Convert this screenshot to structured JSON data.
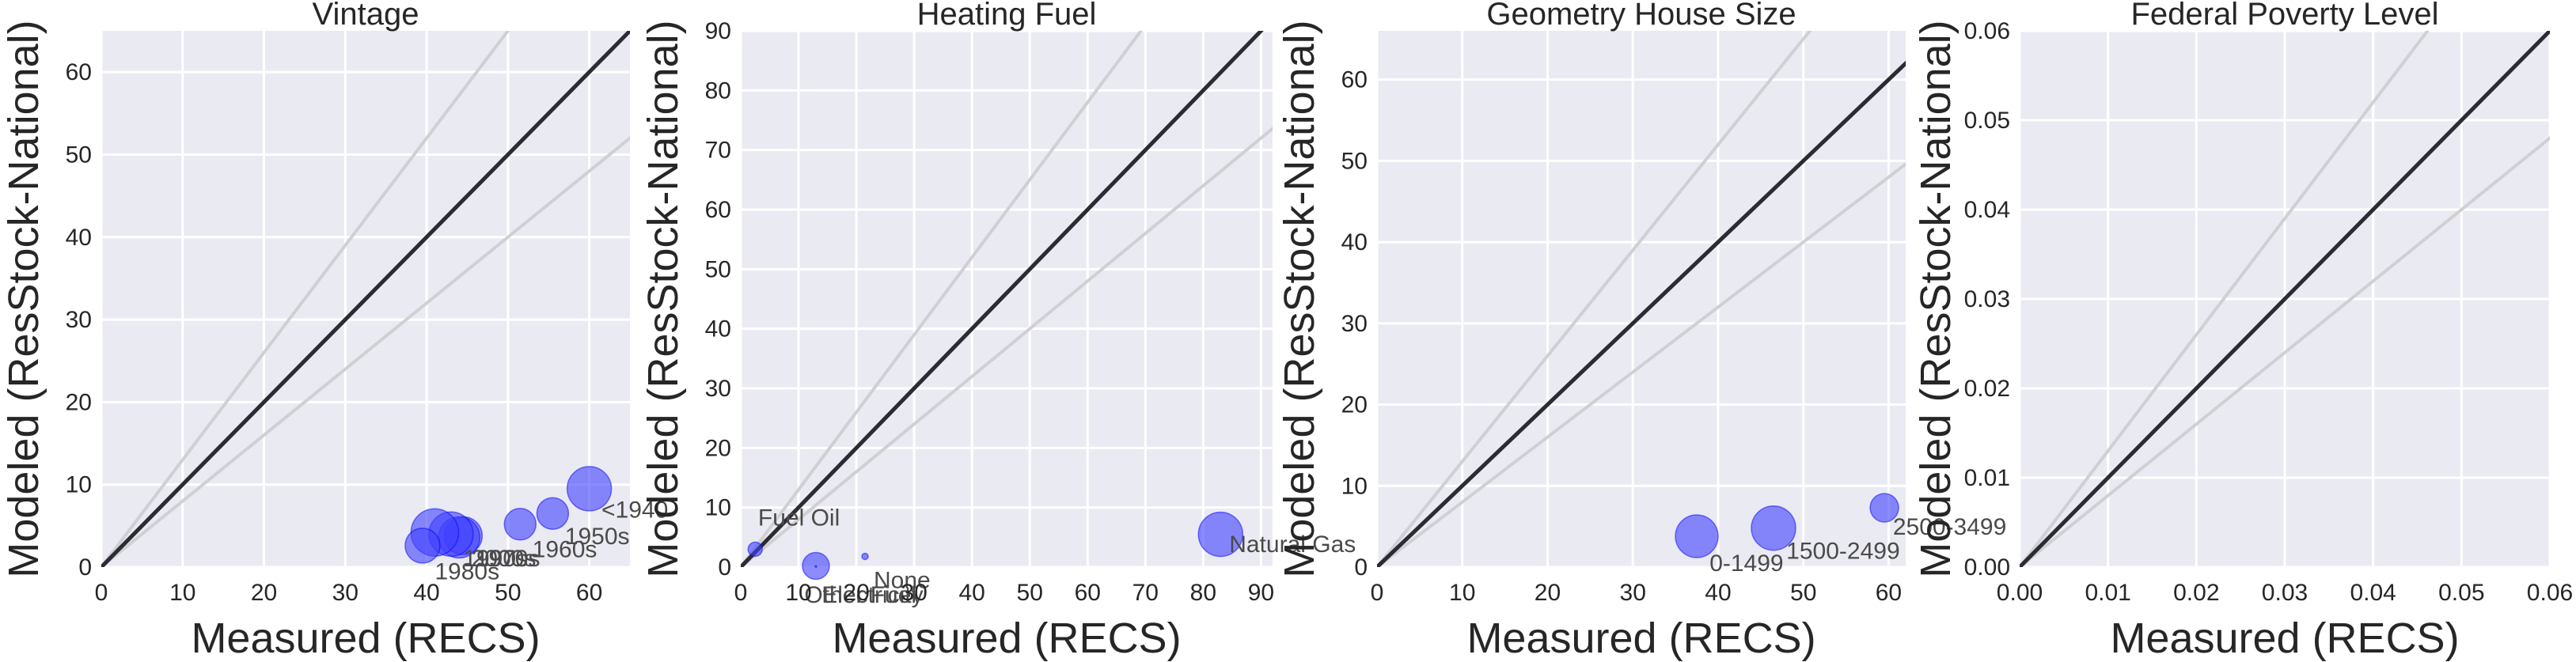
{
  "chart_data": [
    {
      "type": "scatter",
      "title": "Vintage",
      "xlabel": "Measured (RECS)",
      "ylabel": "Modeled (ResStock-National)",
      "xlim": [
        0,
        65
      ],
      "ylim": [
        0,
        65
      ],
      "xticks": [
        0,
        10,
        20,
        30,
        40,
        50,
        60
      ],
      "yticks": [
        0,
        10,
        20,
        30,
        40,
        50,
        60
      ],
      "grid": true,
      "points": [
        {
          "label": "<1940",
          "x": 60.0,
          "y": 9.5,
          "size": 28
        },
        {
          "label": "1950s",
          "x": 55.5,
          "y": 6.5,
          "size": 20
        },
        {
          "label": "1960s",
          "x": 51.5,
          "y": 5.2,
          "size": 20
        },
        {
          "label": "1970s",
          "x": 44.5,
          "y": 3.8,
          "size": 24
        },
        {
          "label": "2000s",
          "x": 44.0,
          "y": 3.6,
          "size": 26
        },
        {
          "label": "1990s",
          "x": 43.0,
          "y": 4.0,
          "size": 28
        },
        {
          "label": "1980s",
          "x": 41.0,
          "y": 4.2,
          "size": 30
        },
        {
          "label": "",
          "x": 39.5,
          "y": 2.6,
          "size": 22
        }
      ],
      "annotations": [
        {
          "text": "<1940",
          "x": 61.5,
          "y": 6.0
        },
        {
          "text": "1950s",
          "x": 57.0,
          "y": 2.8
        },
        {
          "text": "1960s",
          "x": 53.0,
          "y": 1.2
        },
        {
          "text": "1970s",
          "x": 46.0,
          "y": 0.1
        },
        {
          "text": "2000s",
          "x": 45.5,
          "y": 0.1
        },
        {
          "text": "1990s",
          "x": 44.5,
          "y": 0.1
        },
        {
          "text": "1980s",
          "x": 41.0,
          "y": -1.5
        }
      ]
    },
    {
      "type": "scatter",
      "title": "Heating Fuel",
      "xlabel": "Measured (RECS)",
      "ylabel": "Modeled (ResStock-National)",
      "xlim": [
        0,
        92
      ],
      "ylim": [
        0,
        90
      ],
      "xticks": [
        0,
        10,
        20,
        30,
        40,
        50,
        60,
        70,
        80,
        90
      ],
      "yticks": [
        0,
        10,
        20,
        30,
        40,
        50,
        60,
        70,
        80,
        90
      ],
      "grid": true,
      "points": [
        {
          "label": "Natural Gas",
          "x": 83.0,
          "y": 5.5,
          "size": 28
        },
        {
          "label": "Fuel Oil",
          "x": 2.5,
          "y": 3.0,
          "size": 9
        },
        {
          "label": "Other Fuel",
          "x": 13.0,
          "y": 0.2,
          "size": 17
        },
        {
          "label": "None",
          "x": 21.5,
          "y": 1.8,
          "size": 4
        },
        {
          "label": "Electricity",
          "x": 13.0,
          "y": 0.1,
          "size": 1
        }
      ],
      "annotations": [
        {
          "text": "Natural Gas",
          "x": 84.5,
          "y": 2.5
        },
        {
          "text": "Fuel Oil",
          "x": 3.0,
          "y": 7.0
        },
        {
          "text": "Other Fuel",
          "x": 11.0,
          "y": -6.0
        },
        {
          "text": "Electricity",
          "x": 14.0,
          "y": -6.0
        },
        {
          "text": "None",
          "x": 23.0,
          "y": -3.5
        }
      ]
    },
    {
      "type": "scatter",
      "title": "Geometry House Size",
      "xlabel": "Measured (RECS)",
      "ylabel": "Modeled (ResStock-National)",
      "xlim": [
        0,
        62
      ],
      "ylim": [
        0,
        66
      ],
      "xticks": [
        0,
        10,
        20,
        30,
        40,
        50,
        60
      ],
      "yticks": [
        0,
        10,
        20,
        30,
        40,
        50,
        60
      ],
      "grid": true,
      "points": [
        {
          "label": "2500-3499",
          "x": 59.5,
          "y": 7.3,
          "size": 18
        },
        {
          "label": "1500-2499",
          "x": 46.5,
          "y": 4.8,
          "size": 28
        },
        {
          "label": "0-1499",
          "x": 37.5,
          "y": 3.8,
          "size": 27
        }
      ],
      "annotations": [
        {
          "text": "2500-3499",
          "x": 60.5,
          "y": 4.0
        },
        {
          "text": "1500-2499",
          "x": 48.0,
          "y": 1.0
        },
        {
          "text": "0-1499",
          "x": 39.0,
          "y": -0.5
        }
      ]
    },
    {
      "type": "scatter",
      "title": "Federal Poverty Level",
      "xlabel": "Measured (RECS)",
      "ylabel": "Modeled (ResStock-National)",
      "xlim": [
        0,
        0.06
      ],
      "ylim": [
        0,
        0.06
      ],
      "xticks": [
        "0.00",
        "0.01",
        "0.02",
        "0.03",
        "0.04",
        "0.05",
        "0.06"
      ],
      "yticks": [
        "0.00",
        "0.01",
        "0.02",
        "0.03",
        "0.04",
        "0.05",
        "0.06"
      ],
      "grid": true,
      "points": [],
      "annotations": []
    }
  ],
  "colors": {
    "plot_background": "#eaeaf2",
    "grid": "#ffffff",
    "identity_line": "#2b2b33",
    "band_lines": "#cfcfd4",
    "point_fill": "#4040ff",
    "point_edge": "#0000ff",
    "text": "#262626"
  }
}
